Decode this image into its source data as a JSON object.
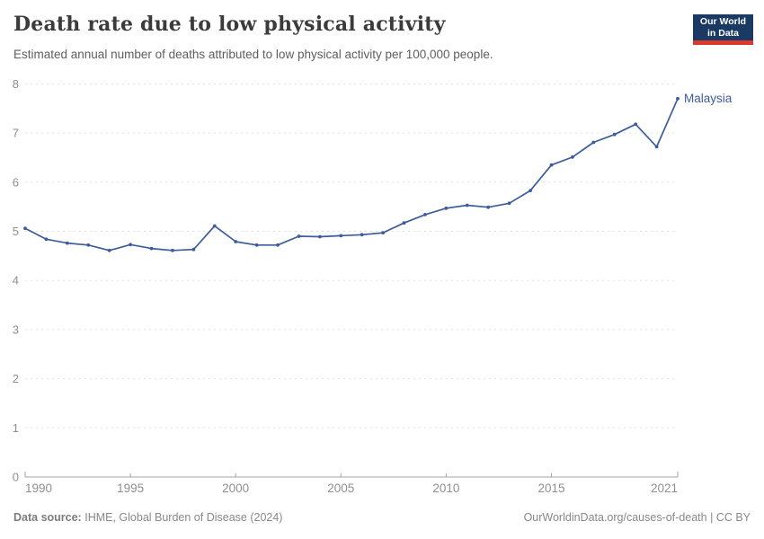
{
  "header": {
    "title": "Death rate due to low physical activity",
    "subtitle": "Estimated annual number of deaths attributed to low physical activity per 100,000 people.",
    "logo_line1": "Our World",
    "logo_line2": "in Data"
  },
  "chart_data": {
    "type": "line",
    "title": "Death rate due to low physical activity",
    "xlabel": "",
    "ylabel": "",
    "x_range": [
      1990,
      2021
    ],
    "ylim": [
      0,
      8
    ],
    "y_ticks": [
      0,
      1,
      2,
      3,
      4,
      5,
      6,
      7,
      8
    ],
    "x_ticks": [
      {
        "year": 1990,
        "label": "1990",
        "anchor": "start"
      },
      {
        "year": 1995,
        "label": "1995",
        "anchor": "middle"
      },
      {
        "year": 2000,
        "label": "2000",
        "anchor": "middle"
      },
      {
        "year": 2005,
        "label": "2005",
        "anchor": "middle"
      },
      {
        "year": 2010,
        "label": "2010",
        "anchor": "middle"
      },
      {
        "year": 2015,
        "label": "2015",
        "anchor": "middle"
      },
      {
        "year": 2021,
        "label": "2021",
        "anchor": "end"
      }
    ],
    "grid": "horizontal-dashed",
    "legend_position": "end-of-line-label",
    "x": [
      1990,
      1991,
      1992,
      1993,
      1994,
      1995,
      1996,
      1997,
      1998,
      1999,
      2000,
      2001,
      2002,
      2003,
      2004,
      2005,
      2006,
      2007,
      2008,
      2009,
      2010,
      2011,
      2012,
      2013,
      2014,
      2015,
      2016,
      2017,
      2018,
      2019,
      2020,
      2021
    ],
    "series": [
      {
        "name": "Malaysia",
        "values": [
          5.06,
          4.84,
          4.76,
          4.72,
          4.61,
          4.73,
          4.65,
          4.61,
          4.63,
          5.11,
          4.79,
          4.72,
          4.72,
          4.9,
          4.89,
          4.91,
          4.93,
          4.97,
          5.17,
          5.34,
          5.47,
          5.53,
          5.49,
          5.57,
          5.83,
          6.35,
          6.51,
          6.81,
          6.97,
          7.18,
          6.72,
          7.7
        ]
      }
    ]
  },
  "footer": {
    "source_label": "Data source:",
    "source_text": "IHME, Global Burden of Disease (2024)",
    "link_text": "OurWorldinData.org/causes-of-death | CC BY"
  },
  "colors": {
    "line": "#3d5c9c",
    "series_label": "#3d5c9c",
    "grid": "#e0e0e0",
    "axis": "#a3a3a3",
    "tick_label": "#8f8f8f",
    "logo_bg": "#1a3a63",
    "logo_red": "#d93a2d"
  }
}
